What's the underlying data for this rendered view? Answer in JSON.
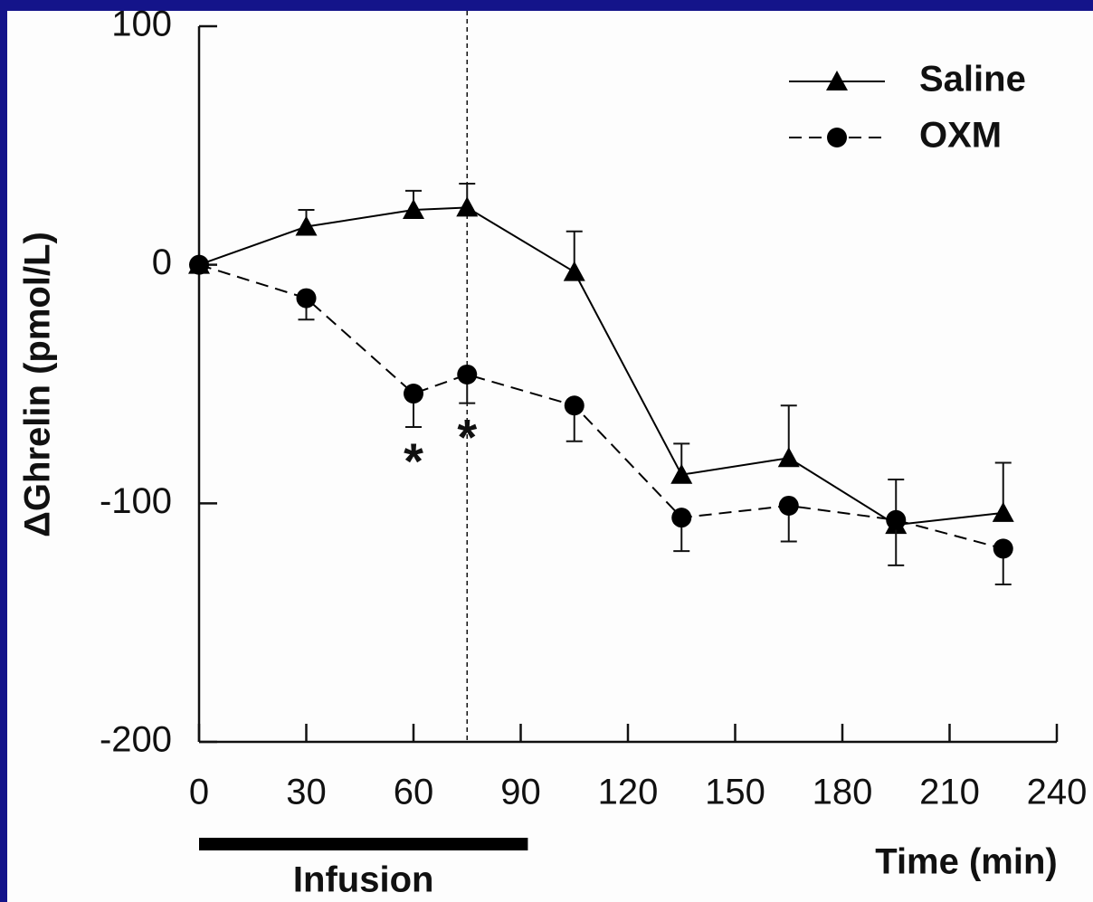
{
  "chart_data": {
    "type": "line",
    "x_label": "Time (min)",
    "y_label": "ΔGhrelin (pmol/L)",
    "x": [
      0,
      30,
      60,
      75,
      105,
      135,
      165,
      195,
      225
    ],
    "series": [
      {
        "name": "Saline",
        "color": "#000000",
        "dash": "solid",
        "marker": "triangle",
        "error_direction": "up",
        "values": [
          0,
          16,
          23,
          24,
          -3,
          -88,
          -81,
          -109,
          -104
        ],
        "errors": [
          0,
          7,
          8,
          10,
          17,
          13,
          22,
          19,
          21
        ]
      },
      {
        "name": "OXM",
        "color": "#000000",
        "dash": "dashed",
        "marker": "circle",
        "error_direction": "down",
        "values": [
          0,
          -14,
          -54,
          -46,
          -59,
          -106,
          -101,
          -107,
          -119
        ],
        "errors": [
          0,
          9,
          14,
          12,
          15,
          14,
          15,
          19,
          15
        ]
      }
    ],
    "annotations": [
      {
        "text": "*",
        "x": 60
      },
      {
        "text": "*",
        "x": 75
      }
    ],
    "vline": 75,
    "infusion": {
      "label": "Infusion",
      "range": [
        0,
        92
      ]
    },
    "xlim": [
      0,
      240
    ],
    "xticks": [
      0,
      30,
      60,
      90,
      120,
      150,
      180,
      210,
      240
    ],
    "ylim": [
      -200,
      100
    ],
    "yticks": [
      -200,
      -100,
      0,
      100
    ],
    "legend": "upper right"
  }
}
